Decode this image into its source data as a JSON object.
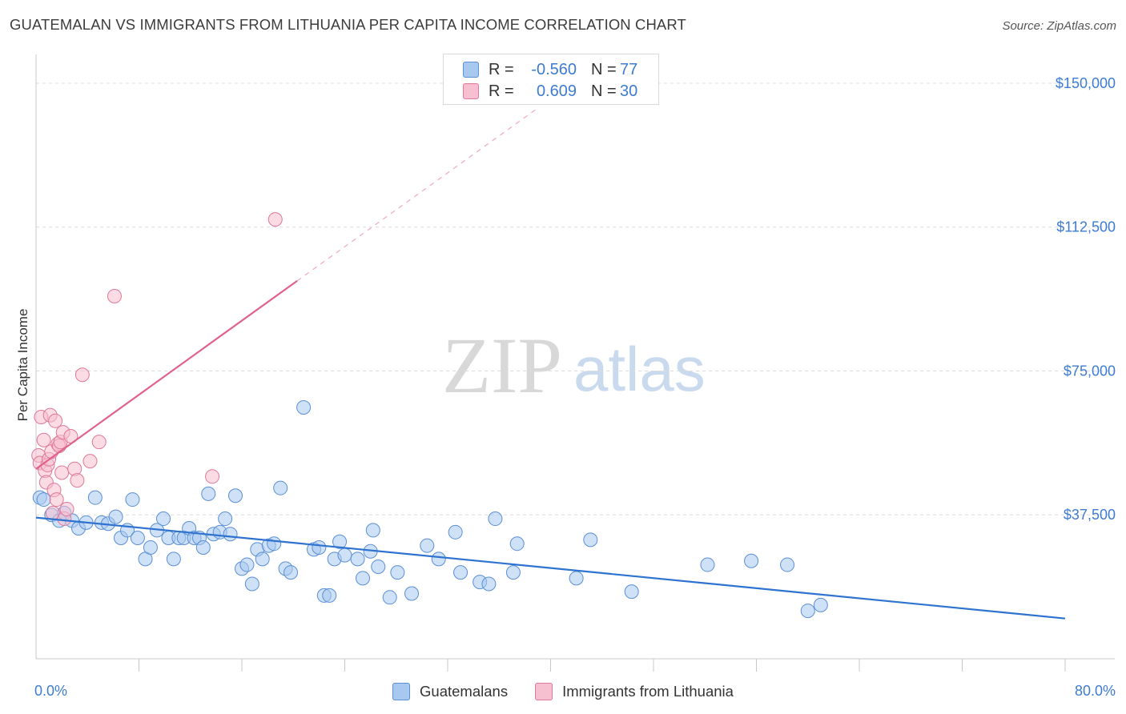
{
  "title": "GUATEMALAN VS IMMIGRANTS FROM LITHUANIA PER CAPITA INCOME CORRELATION CHART",
  "source": "Source: ZipAtlas.com",
  "watermark": {
    "zip": "ZIP",
    "atlas": "atlas"
  },
  "legend": {
    "r_label": "R =",
    "n_label": "N =",
    "rows": [
      {
        "r": "-0.560",
        "n": "77",
        "color": "#a8c8ef",
        "border": "#5b8fd6"
      },
      {
        "r": "0.609",
        "n": "30",
        "color": "#f7c0d0",
        "border": "#e07899"
      }
    ]
  },
  "bottom_legend": [
    "Guatemalans",
    "Immigrants from Lithuania"
  ],
  "chart_data": {
    "type": "scatter",
    "title": "GUATEMALAN VS IMMIGRANTS FROM LITHUANIA PER CAPITA INCOME CORRELATION CHART",
    "xlabel": "",
    "ylabel": "Per Capita Income",
    "xlim": [
      0,
      80
    ],
    "ylim": [
      0,
      155000
    ],
    "x_tick_labels": [
      "0.0%",
      "80.0%"
    ],
    "y_ticks": [
      37500,
      75000,
      112500,
      150000
    ],
    "y_tick_labels": [
      "$37,500",
      "$75,000",
      "$112,500",
      "$150,000"
    ],
    "grid": true,
    "series": [
      {
        "name": "Guatemalans",
        "color": "#a8c8ef",
        "stroke": "#5b8fd6",
        "trend": {
          "x0": 0,
          "y0": 36800,
          "x1": 80,
          "y1": 10500,
          "color": "#2e73d0"
        },
        "points": [
          [
            0.3,
            42000
          ],
          [
            0.6,
            41500
          ],
          [
            1.2,
            37500
          ],
          [
            1.8,
            36000
          ],
          [
            2.2,
            38000
          ],
          [
            2.8,
            36000
          ],
          [
            3.3,
            34000
          ],
          [
            3.9,
            35500
          ],
          [
            4.6,
            42000
          ],
          [
            5.1,
            35500
          ],
          [
            5.6,
            35200
          ],
          [
            6.2,
            37000
          ],
          [
            6.6,
            31500
          ],
          [
            7.1,
            33500
          ],
          [
            7.5,
            41500
          ],
          [
            7.9,
            31500
          ],
          [
            8.5,
            26000
          ],
          [
            8.9,
            29000
          ],
          [
            9.4,
            33500
          ],
          [
            9.9,
            36500
          ],
          [
            10.3,
            31500
          ],
          [
            10.7,
            26000
          ],
          [
            11.1,
            31500
          ],
          [
            11.5,
            31500
          ],
          [
            11.9,
            34000
          ],
          [
            12.3,
            31500
          ],
          [
            12.7,
            31500
          ],
          [
            13.0,
            29000
          ],
          [
            13.4,
            43000
          ],
          [
            13.8,
            32500
          ],
          [
            14.3,
            33000
          ],
          [
            14.7,
            36500
          ],
          [
            15.1,
            32500
          ],
          [
            15.5,
            42500
          ],
          [
            16.0,
            23500
          ],
          [
            16.4,
            24500
          ],
          [
            16.8,
            19500
          ],
          [
            17.2,
            28500
          ],
          [
            17.6,
            26000
          ],
          [
            18.1,
            29500
          ],
          [
            18.5,
            30000
          ],
          [
            19.0,
            44500
          ],
          [
            19.4,
            23500
          ],
          [
            19.8,
            22500
          ],
          [
            20.8,
            65500
          ],
          [
            21.6,
            28500
          ],
          [
            22.0,
            29000
          ],
          [
            22.4,
            16500
          ],
          [
            22.8,
            16500
          ],
          [
            23.2,
            26000
          ],
          [
            23.6,
            30500
          ],
          [
            24.0,
            27000
          ],
          [
            25.0,
            26000
          ],
          [
            25.4,
            21000
          ],
          [
            26.0,
            28000
          ],
          [
            26.2,
            33500
          ],
          [
            26.6,
            24000
          ],
          [
            27.5,
            16000
          ],
          [
            28.1,
            22500
          ],
          [
            29.2,
            17000
          ],
          [
            30.4,
            29500
          ],
          [
            31.3,
            26000
          ],
          [
            32.6,
            33000
          ],
          [
            33.0,
            22500
          ],
          [
            34.5,
            20000
          ],
          [
            35.2,
            19500
          ],
          [
            35.7,
            36500
          ],
          [
            37.1,
            22500
          ],
          [
            37.4,
            30000
          ],
          [
            42.0,
            21000
          ],
          [
            43.1,
            31000
          ],
          [
            46.3,
            17500
          ],
          [
            52.2,
            24500
          ],
          [
            55.6,
            25500
          ],
          [
            58.4,
            24500
          ],
          [
            60.0,
            12500
          ],
          [
            61.0,
            14000
          ]
        ]
      },
      {
        "name": "Immigrants from Lithuania",
        "color": "#f7c0d0",
        "stroke": "#e07899",
        "trend": {
          "x0": 0,
          "y0": 49500,
          "x1": 20.3,
          "y1": 98500,
          "color": "#e0618a",
          "dash_to": [
            39,
            143500
          ]
        },
        "points": [
          [
            0.2,
            53000
          ],
          [
            0.3,
            51000
          ],
          [
            0.4,
            63000
          ],
          [
            0.6,
            57000
          ],
          [
            0.7,
            49000
          ],
          [
            0.8,
            46000
          ],
          [
            0.9,
            50500
          ],
          [
            1.0,
            52000
          ],
          [
            1.1,
            63500
          ],
          [
            1.2,
            54000
          ],
          [
            1.3,
            38000
          ],
          [
            1.4,
            44000
          ],
          [
            1.5,
            62000
          ],
          [
            1.6,
            41500
          ],
          [
            1.7,
            56000
          ],
          [
            1.8,
            55500
          ],
          [
            1.9,
            56500
          ],
          [
            2.0,
            48500
          ],
          [
            2.1,
            59000
          ],
          [
            2.2,
            36500
          ],
          [
            2.4,
            39000
          ],
          [
            2.7,
            58000
          ],
          [
            3.0,
            49500
          ],
          [
            3.2,
            46500
          ],
          [
            3.6,
            74000
          ],
          [
            4.2,
            51500
          ],
          [
            4.9,
            56500
          ],
          [
            6.1,
            94500
          ],
          [
            13.7,
            47500
          ],
          [
            18.6,
            114500
          ]
        ]
      }
    ]
  }
}
